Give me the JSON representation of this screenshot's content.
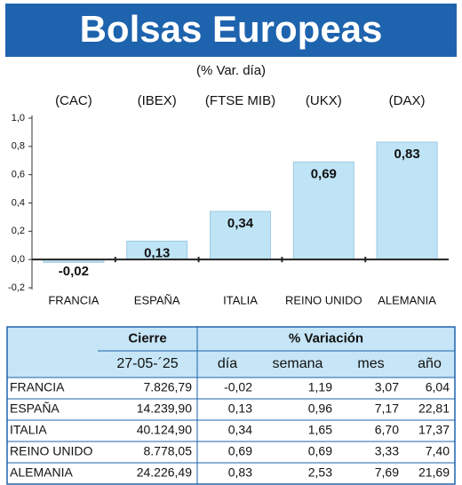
{
  "chart_data": {
    "type": "bar",
    "title": "Bolsas Europeas",
    "subtitle": "(% Var. día)",
    "indices": [
      "(CAC)",
      "(IBEX)",
      "(FTSE MIB)",
      "(UKX)",
      "(DAX)"
    ],
    "categories": [
      "FRANCIA",
      "ESPAÑA",
      "ITALIA",
      "REINO UNIDO",
      "ALEMANIA"
    ],
    "values": [
      -0.02,
      0.13,
      0.34,
      0.69,
      0.83
    ],
    "value_labels": [
      "-0,02",
      "0,13",
      "0,34",
      "0,69",
      "0,83"
    ],
    "color": "#bfe4f6",
    "ylim": [
      -0.2,
      1.0
    ],
    "yticks": [
      {
        "value": -0.2,
        "label": "-0,2"
      },
      {
        "value": 0,
        "label": "0,0"
      },
      {
        "value": 0.2,
        "label": "0,2"
      },
      {
        "value": 0.4,
        "label": "0,4"
      },
      {
        "value": 0.6,
        "label": "0,6"
      },
      {
        "value": 0.8,
        "label": "0,8"
      },
      {
        "value": 1.0,
        "label": "1,0"
      }
    ]
  },
  "table": {
    "header": [
      "Cierre",
      "% Variación"
    ],
    "subheader": [
      "27-05-´25",
      "día",
      "semana",
      "mes",
      "año"
    ],
    "rows": [
      [
        "FRANCIA",
        "7.826,79",
        "-0,02",
        "1,19",
        "3,07",
        "6,04"
      ],
      [
        "ESPAÑA",
        "14.239,90",
        "0,13",
        "0,96",
        "7,17",
        "22,81"
      ],
      [
        "ITALIA",
        "40.124,90",
        "0,34",
        "1,65",
        "6,70",
        "17,37"
      ],
      [
        "REINO UNIDO",
        "8.778,05",
        "0,69",
        "0,69",
        "3,33",
        "7,40"
      ],
      [
        "ALEMANIA",
        "24.226,49",
        "0,83",
        "2,53",
        "7,69",
        "21,69"
      ]
    ]
  }
}
